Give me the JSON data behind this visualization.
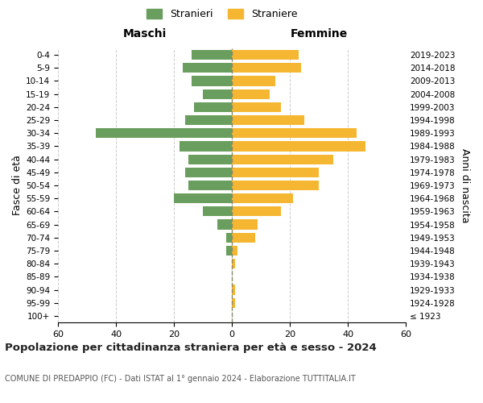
{
  "age_groups": [
    "100+",
    "95-99",
    "90-94",
    "85-89",
    "80-84",
    "75-79",
    "70-74",
    "65-69",
    "60-64",
    "55-59",
    "50-54",
    "45-49",
    "40-44",
    "35-39",
    "30-34",
    "25-29",
    "20-24",
    "15-19",
    "10-14",
    "5-9",
    "0-4"
  ],
  "birth_years": [
    "≤ 1923",
    "1924-1928",
    "1929-1933",
    "1934-1938",
    "1939-1943",
    "1944-1948",
    "1949-1953",
    "1954-1958",
    "1959-1963",
    "1964-1968",
    "1969-1973",
    "1974-1978",
    "1979-1983",
    "1984-1988",
    "1989-1993",
    "1994-1998",
    "1999-2003",
    "2004-2008",
    "2009-2013",
    "2014-2018",
    "2019-2023"
  ],
  "males": [
    0,
    0,
    0,
    0,
    0,
    2,
    2,
    5,
    10,
    20,
    15,
    16,
    15,
    18,
    47,
    16,
    13,
    10,
    14,
    17,
    14
  ],
  "females": [
    0,
    1,
    1,
    0,
    1,
    2,
    8,
    9,
    17,
    21,
    30,
    30,
    35,
    46,
    43,
    25,
    17,
    13,
    15,
    24,
    23
  ],
  "male_color": "#6a9e5e",
  "female_color": "#f5b731",
  "background_color": "#ffffff",
  "grid_color": "#cccccc",
  "title": "Popolazione per cittadinanza straniera per età e sesso - 2024",
  "subtitle": "COMUNE DI PREDAPPIO (FC) - Dati ISTAT al 1° gennaio 2024 - Elaborazione TUTTITALIA.IT",
  "left_label": "Maschi",
  "right_label": "Femmine",
  "y_label": "Fasce di età",
  "right_y_label": "Anni di nascita",
  "legend_male": "Stranieri",
  "legend_female": "Straniere",
  "xlim": 60,
  "center_line_color": "#888866"
}
